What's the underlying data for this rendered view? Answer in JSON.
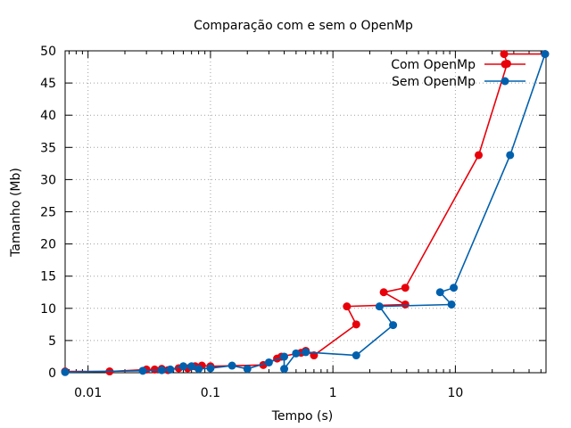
{
  "chart_data": {
    "type": "line",
    "title": "Comparação com e sem o OpenMp",
    "xlabel": "Tempo (s)",
    "ylabel": "Tamanho (Mb)",
    "x_scale": "log",
    "xlim": [
      0.0065,
      55
    ],
    "ylim": [
      0,
      50
    ],
    "grid": true,
    "legend_position": "top-right",
    "x_ticks": [
      {
        "value": 0.01,
        "label": "0.01"
      },
      {
        "value": 0.1,
        "label": "0.1"
      },
      {
        "value": 1,
        "label": "1"
      },
      {
        "value": 10,
        "label": "10"
      }
    ],
    "y_ticks": [
      {
        "value": 0,
        "label": "0"
      },
      {
        "value": 5,
        "label": "5"
      },
      {
        "value": 10,
        "label": "10"
      },
      {
        "value": 15,
        "label": "15"
      },
      {
        "value": 20,
        "label": "20"
      },
      {
        "value": 25,
        "label": "25"
      },
      {
        "value": 30,
        "label": "30"
      },
      {
        "value": 35,
        "label": "35"
      },
      {
        "value": 40,
        "label": "40"
      },
      {
        "value": 45,
        "label": "45"
      },
      {
        "value": 50,
        "label": "50"
      }
    ],
    "series": [
      {
        "name": "Com OpenMp",
        "color": "#e8000b",
        "points": [
          {
            "x": 0.0065,
            "y": 0.2
          },
          {
            "x": 0.015,
            "y": 0.2
          },
          {
            "x": 0.03,
            "y": 0.5
          },
          {
            "x": 0.035,
            "y": 0.5
          },
          {
            "x": 0.04,
            "y": 0.6
          },
          {
            "x": 0.045,
            "y": 0.4
          },
          {
            "x": 0.055,
            "y": 0.7
          },
          {
            "x": 0.065,
            "y": 0.7
          },
          {
            "x": 0.075,
            "y": 1.0
          },
          {
            "x": 0.085,
            "y": 1.1
          },
          {
            "x": 0.1,
            "y": 1.0
          },
          {
            "x": 0.27,
            "y": 1.2
          },
          {
            "x": 0.35,
            "y": 2.2
          },
          {
            "x": 0.38,
            "y": 2.5
          },
          {
            "x": 0.55,
            "y": 3.1
          },
          {
            "x": 0.6,
            "y": 3.4
          },
          {
            "x": 0.7,
            "y": 2.7
          },
          {
            "x": 1.55,
            "y": 7.5
          },
          {
            "x": 1.3,
            "y": 10.3
          },
          {
            "x": 3.9,
            "y": 10.6
          },
          {
            "x": 2.6,
            "y": 12.5
          },
          {
            "x": 3.9,
            "y": 13.2
          },
          {
            "x": 15.5,
            "y": 33.8
          },
          {
            "x": 26.5,
            "y": 48.0
          },
          {
            "x": 25.0,
            "y": 49.5
          },
          {
            "x": 54.0,
            "y": 49.5
          }
        ]
      },
      {
        "name": "Sem OpenMp",
        "color": "#0060ad",
        "points": [
          {
            "x": 0.0065,
            "y": 0.1
          },
          {
            "x": 0.028,
            "y": 0.3
          },
          {
            "x": 0.04,
            "y": 0.4
          },
          {
            "x": 0.047,
            "y": 0.5
          },
          {
            "x": 0.06,
            "y": 1.0
          },
          {
            "x": 0.07,
            "y": 1.0
          },
          {
            "x": 0.08,
            "y": 0.6
          },
          {
            "x": 0.1,
            "y": 0.7
          },
          {
            "x": 0.15,
            "y": 1.1
          },
          {
            "x": 0.2,
            "y": 0.6
          },
          {
            "x": 0.3,
            "y": 1.6
          },
          {
            "x": 0.4,
            "y": 2.5
          },
          {
            "x": 0.4,
            "y": 0.6
          },
          {
            "x": 0.5,
            "y": 3.0
          },
          {
            "x": 0.6,
            "y": 3.2
          },
          {
            "x": 1.55,
            "y": 2.7
          },
          {
            "x": 3.1,
            "y": 7.4
          },
          {
            "x": 2.4,
            "y": 10.3
          },
          {
            "x": 9.3,
            "y": 10.6
          },
          {
            "x": 7.5,
            "y": 12.5
          },
          {
            "x": 9.7,
            "y": 13.2
          },
          {
            "x": 28.0,
            "y": 33.8
          },
          {
            "x": 54.0,
            "y": 49.5
          }
        ]
      }
    ]
  }
}
